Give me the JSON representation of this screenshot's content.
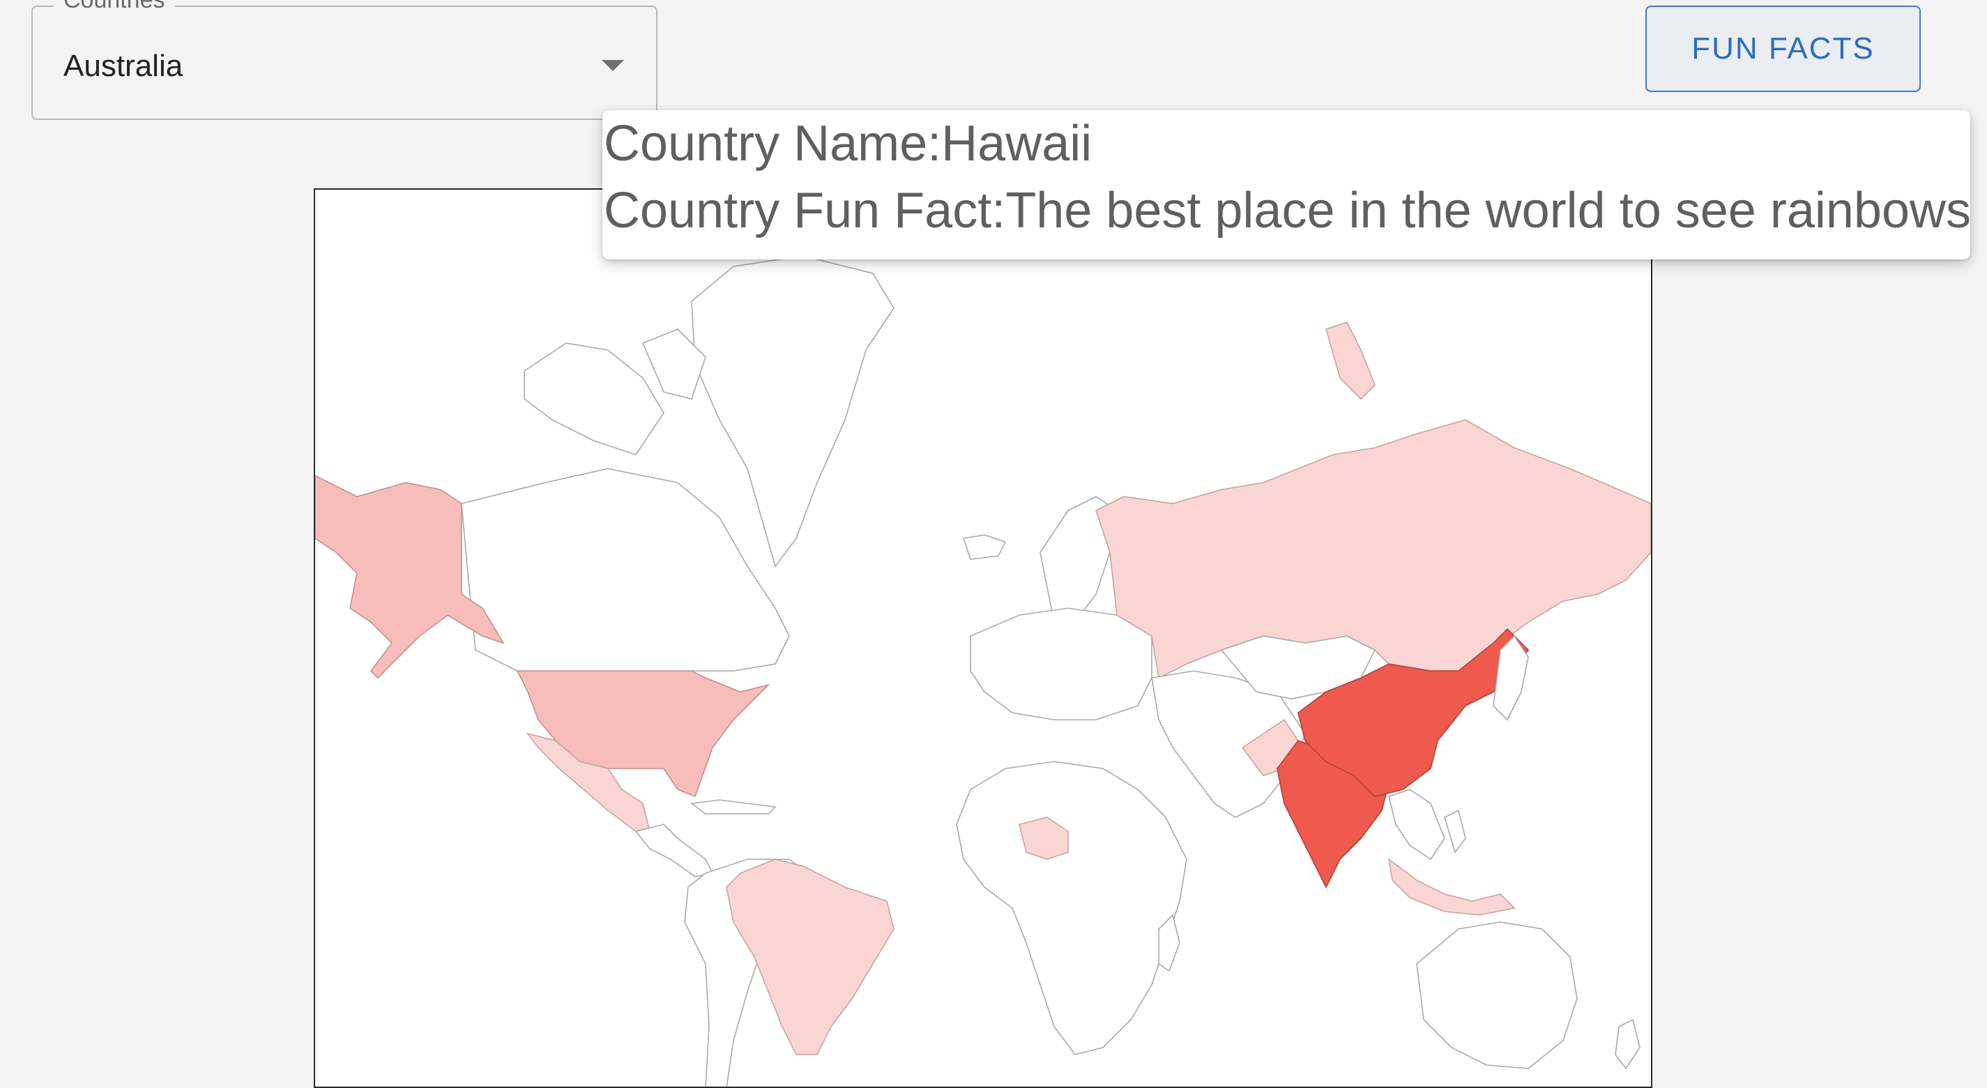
{
  "country_select": {
    "label": "Countries",
    "selected": "Australia"
  },
  "fun_facts_button": {
    "label": "FUN FACTS"
  },
  "tooltip": {
    "name_prefix": "Country Name:",
    "name_value": "Hawaii",
    "fact_prefix": "Country Fun Fact:",
    "fact_value": "The best place in the world to see rainbows"
  },
  "colors": {
    "background": "#f4f4f4",
    "accent": "#2d6cc0",
    "map_light": "#f9d6d3",
    "map_medium": "#f6bdbb",
    "map_dark": "#ee5a4e"
  }
}
